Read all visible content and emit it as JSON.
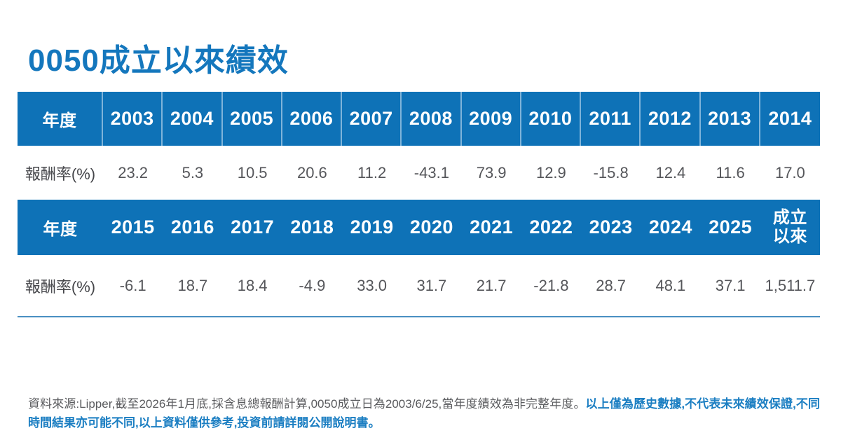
{
  "page": {
    "title": "0050成立以來績效"
  },
  "colors": {
    "title_blue": "#1477bd",
    "header_blue": "#0e72b7",
    "header_separator_blue": "#7fb4da",
    "value_gray": "#55565a",
    "bottom_rule_blue": "#4a90c2",
    "footnote_gray": "#5a5b5e",
    "footnote_blue": "#1b7ec2"
  },
  "table1": {
    "year_label": "年度",
    "return_label": "報酬率(%)",
    "years": [
      "2003",
      "2004",
      "2005",
      "2006",
      "2007",
      "2008",
      "2009",
      "2010",
      "2011",
      "2012",
      "2013",
      "2014"
    ],
    "returns": [
      "23.2",
      "5.3",
      "10.5",
      "20.6",
      "11.2",
      "-43.1",
      "73.9",
      "12.9",
      "-15.8",
      "12.4",
      "11.6",
      "17.0"
    ]
  },
  "table2": {
    "year_label": "年度",
    "return_label": "報酬率(%)",
    "years": [
      "2015",
      "2016",
      "2017",
      "2018",
      "2019",
      "2020",
      "2021",
      "2022",
      "2023",
      "2024",
      "2025"
    ],
    "inception_label": "成立以來",
    "returns": [
      "-6.1",
      "18.7",
      "18.4",
      "-4.9",
      "33.0",
      "31.7",
      "21.7",
      "-21.8",
      "28.7",
      "48.1",
      "37.1",
      "1,511.7"
    ]
  },
  "footnote": {
    "source_text": "資料來源:Lipper,截至2026年1月底,採含息總報酬計算,0050成立日為2003/6/25,當年度績效為非完整年度。",
    "disclaimer_text": "以上僅為歷史數據,不代表未來績效保證,不同時間結果亦可能不同,以上資料僅供參考,投資前請詳閱公開說明書。"
  },
  "chart_data": {
    "type": "table",
    "title": "0050成立以來績效",
    "col_label": "年度",
    "row_label": "報酬率(%)",
    "categories": [
      "2003",
      "2004",
      "2005",
      "2006",
      "2007",
      "2008",
      "2009",
      "2010",
      "2011",
      "2012",
      "2013",
      "2014",
      "2015",
      "2016",
      "2017",
      "2018",
      "2019",
      "2020",
      "2021",
      "2022",
      "2023",
      "2024",
      "2025",
      "成立以來"
    ],
    "values": [
      23.2,
      5.3,
      10.5,
      20.6,
      11.2,
      -43.1,
      73.9,
      12.9,
      -15.8,
      12.4,
      11.6,
      17.0,
      -6.1,
      18.7,
      18.4,
      -4.9,
      33.0,
      31.7,
      21.7,
      -21.8,
      28.7,
      48.1,
      37.1,
      1511.7
    ]
  }
}
